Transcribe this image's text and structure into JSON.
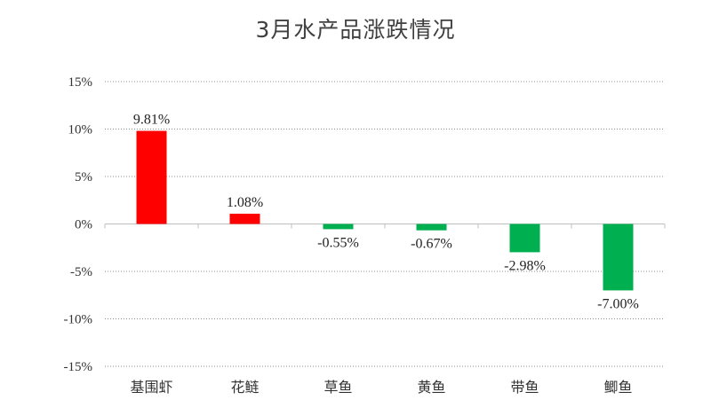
{
  "colors": {
    "positive": "#ff0000",
    "negative": "#00b050",
    "grid": "#8c8c8c",
    "axis": "#bfbfbf"
  },
  "chart_data": {
    "type": "bar",
    "title": "3月水产品涨跌情况",
    "categories": [
      "基围虾",
      "花鲢",
      "草鱼",
      "黄鱼",
      "带鱼",
      "鲫鱼"
    ],
    "values": [
      9.81,
      1.08,
      -0.55,
      -0.67,
      -2.98,
      -7.0
    ],
    "data_labels": [
      "9.81%",
      "1.08%",
      "-0.55%",
      "-0.67%",
      "-2.98%",
      "-7.00%"
    ],
    "yticks": [
      "15%",
      "10%",
      "5%",
      "0%",
      "-5%",
      "-10%",
      "-15%"
    ],
    "ytick_values": [
      15,
      10,
      5,
      0,
      -5,
      -10,
      -15
    ],
    "ylim": [
      -15,
      15
    ],
    "xlabel": "",
    "ylabel": "",
    "grid": true,
    "legend": "none"
  }
}
